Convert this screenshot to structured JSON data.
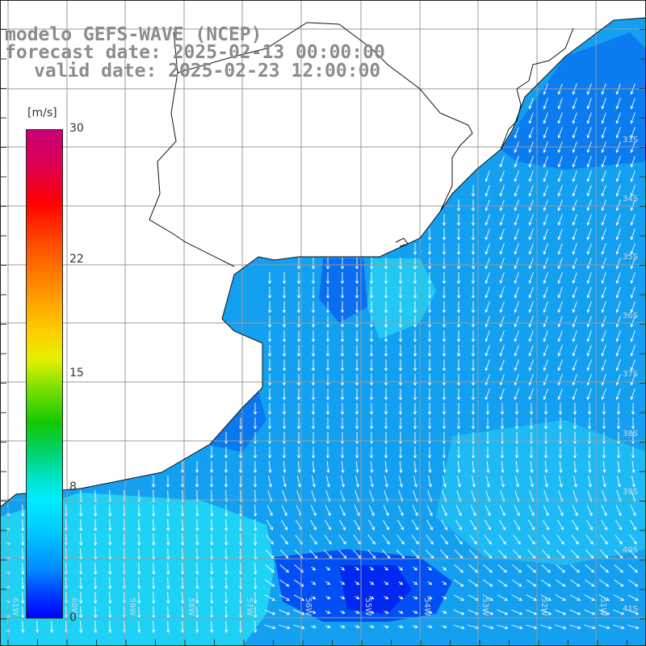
{
  "title": {
    "line1": "modelo GEFS-WAVE (NCEP)",
    "line2": "forecast date: 2025-02-13 00:00:00",
    "line3": "valid date: 2025-02-23 12:00:00"
  },
  "colorbar": {
    "unit": "[m/s]",
    "ticks": [
      {
        "value": 30,
        "label": "30"
      },
      {
        "value": 22,
        "label": "22"
      },
      {
        "value": 15,
        "label": "15"
      },
      {
        "value": 8,
        "label": "8"
      },
      {
        "value": 0,
        "label": "0"
      }
    ],
    "min": 0,
    "max": 30
  },
  "lat_labels": [
    "33S",
    "34S",
    "35S",
    "36S",
    "37S",
    "38S",
    "39S",
    "40S",
    "41S"
  ],
  "lon_labels": [
    "61W",
    "60W",
    "59W",
    "58W",
    "57W",
    "56W",
    "55W",
    "54W",
    "53W",
    "52W",
    "51W"
  ],
  "colors": {
    "land": "#ffffff",
    "grid": "#9a9a9a",
    "coast": "#111111",
    "arrow": "#ffffff",
    "title": "#8c8c8c"
  },
  "map": {
    "variable": "wind speed and direction",
    "lon_range": [
      -61.5,
      -50.5
    ],
    "lat_range": [
      -41.5,
      -32.0
    ]
  }
}
